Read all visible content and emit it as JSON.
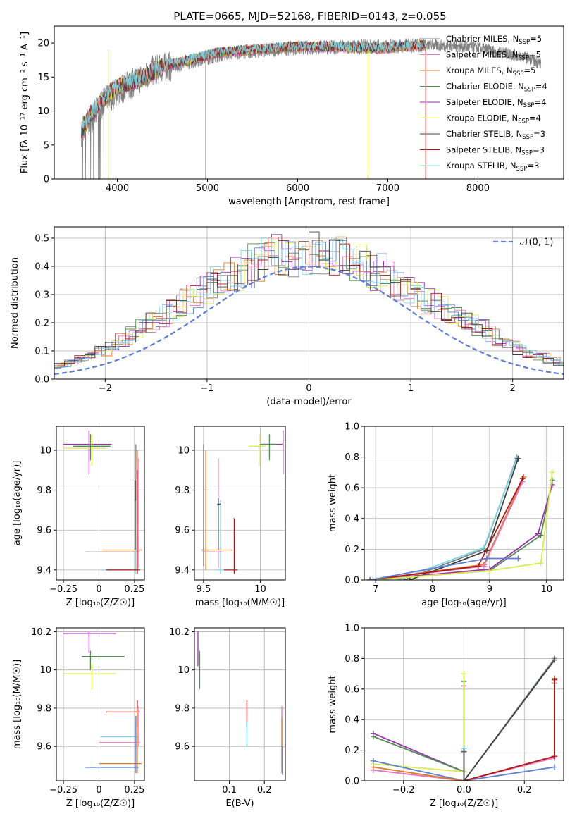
{
  "figure_title": "PLATE=0665, MJD=52168, FIBERID=0143, z=0.055",
  "colors": {
    "Chabrier MILES": "#7f7f7f",
    "Salpeter MILES": "#e377c2",
    "Kroupa MILES": "#e07b20",
    "Chabrier ELODIE": "#4f8f4f",
    "Salpeter ELODIE": "#9b30b0",
    "Kroupa ELODIE": "#d8ec4a",
    "Chabrier STELIB": "#404040",
    "Salpeter STELIB": "#b01818",
    "Kroupa STELIB": "#7ad8e8",
    "normal": "#5b7fd6"
  },
  "chart_data": [
    {
      "type": "line",
      "id": "spectrum",
      "title": "PLATE=0665, MJD=52168, FIBERID=0143, z=0.055",
      "xlabel": "wavelength [Angstrom, rest frame]",
      "ylabel": "Flux [fλ 10⁻¹⁷ erg cm⁻² s⁻¹ A⁻¹]",
      "xlim": [
        3300,
        8950
      ],
      "ylim": [
        0,
        22.5
      ],
      "xticks": [
        4000,
        5000,
        6000,
        7000,
        8000
      ],
      "yticks": [
        0,
        5,
        10,
        15,
        20
      ],
      "grid": false,
      "legend_position": "top-right",
      "legend": [
        {
          "series": "Chabrier MILES",
          "name": "Chabrier MILES",
          "nssp": "5"
        },
        {
          "series": "Salpeter MILES",
          "name": "Salpeter MILES",
          "nssp": "5"
        },
        {
          "series": "Kroupa MILES",
          "name": "Kroupa MILES",
          "nssp": "5"
        },
        {
          "series": "Chabrier ELODIE",
          "name": "Chabrier ELODIE",
          "nssp": "4"
        },
        {
          "series": "Salpeter ELODIE",
          "name": "Salpeter ELODIE",
          "nssp": "4"
        },
        {
          "series": "Kroupa ELODIE",
          "name": "Kroupa ELODIE",
          "nssp": "4"
        },
        {
          "series": "Chabrier STELIB",
          "name": "Chabrier STELIB",
          "nssp": "3"
        },
        {
          "series": "Salpeter STELIB",
          "name": "Salpeter STELIB",
          "nssp": "3"
        },
        {
          "series": "Kroupa STELIB",
          "name": "Kroupa STELIB",
          "nssp": "3"
        }
      ],
      "continuum": {
        "x": [
          3600,
          3700,
          3800,
          3900,
          4000,
          4100,
          4200,
          4300,
          4400,
          4500,
          4700,
          4900,
          5100,
          5300,
          5500,
          5700,
          6000,
          6300,
          6600,
          6900,
          7200,
          7420
        ],
        "y": [
          7,
          9.5,
          11,
          12.5,
          13.5,
          14,
          14.5,
          15,
          15.8,
          16.5,
          17.2,
          17.8,
          18.5,
          18.8,
          19,
          19.2,
          19.5,
          19.5,
          19.3,
          19.2,
          19.5,
          19.8
        ]
      },
      "gray_obs_continuum": {
        "x": [
          3600,
          3900,
          4400,
          5200,
          6000,
          7000,
          7500,
          8000,
          8500,
          8700
        ],
        "y": [
          7,
          12,
          16,
          18.5,
          19.3,
          19.5,
          19.7,
          19.3,
          18,
          17
        ]
      },
      "drops": [
        {
          "series": "Kroupa ELODIE",
          "x": 3900
        },
        {
          "series": "Chabrier MILES",
          "x": 4980
        },
        {
          "series": "Kroupa ELODIE",
          "x": 6780
        },
        {
          "series": "Salpeter STELIB",
          "x": 7420
        }
      ]
    },
    {
      "type": "step",
      "id": "residuals",
      "xlabel": "(data-model)/error",
      "ylabel": "Normed distribution",
      "xlim": [
        -2.5,
        2.5
      ],
      "ylim": [
        0,
        0.54
      ],
      "xticks": [
        -2,
        -1,
        0,
        1,
        2
      ],
      "yticks": [
        0,
        0.1,
        0.2,
        0.3,
        0.4,
        0.5
      ],
      "grid": true,
      "legend_position": "top-right",
      "legend": [
        {
          "name": "𝒩(0, 1)",
          "style": "dashed",
          "color": "#5b7fd6"
        }
      ],
      "bin_edges_step": 0.1,
      "histogram_envelope": [
        0.018,
        0.022,
        0.028,
        0.035,
        0.042,
        0.05,
        0.06,
        0.072,
        0.085,
        0.1,
        0.118,
        0.138,
        0.16,
        0.18,
        0.2,
        0.225,
        0.25,
        0.275,
        0.3,
        0.32,
        0.34,
        0.36,
        0.375,
        0.39,
        0.41,
        0.43,
        0.45,
        0.44,
        0.43,
        0.44,
        0.45,
        0.44,
        0.43,
        0.42,
        0.41,
        0.395,
        0.38,
        0.36,
        0.34,
        0.32,
        0.3,
        0.28,
        0.26,
        0.24,
        0.22,
        0.2,
        0.18,
        0.16,
        0.14,
        0.12,
        0.105,
        0.09,
        0.078,
        0.066,
        0.056,
        0.046,
        0.038,
        0.03,
        0.024,
        0.02
      ]
    },
    {
      "type": "scatter",
      "id": "age-vs-Z",
      "xlabel": "Z [log₁₀(Z/Z☉)]",
      "ylabel": "age  [log₁₀(age/yr)]",
      "xlim": [
        -0.3,
        0.32
      ],
      "ylim": [
        9.35,
        10.12
      ],
      "xticks": [
        -0.25,
        0.0,
        0.25
      ],
      "yticks": [
        9.4,
        9.6,
        9.8,
        10.0
      ],
      "grid": true,
      "points": [
        {
          "series": "Salpeter ELODIE",
          "x": -0.07,
          "y": 10.03,
          "xlo": -0.25,
          "xhi": 0.09,
          "ylo": 9.88,
          "yhi": 10.1
        },
        {
          "series": "Kroupa ELODIE",
          "x": -0.05,
          "y": 10.01,
          "xlo": -0.25,
          "xhi": 0.05,
          "ylo": 9.92,
          "yhi": 10.08
        },
        {
          "series": "Chabrier ELODIE",
          "x": -0.06,
          "y": 10.02,
          "xlo": -0.18,
          "xhi": 0.08,
          "ylo": 9.95,
          "yhi": 10.08
        },
        {
          "series": "Kroupa MILES",
          "x": 0.27,
          "y": 9.5,
          "xlo": 0.02,
          "xhi": 0.3,
          "ylo": 9.4,
          "yhi": 10.0
        },
        {
          "series": "Salpeter MILES",
          "x": 0.28,
          "y": 9.49,
          "xlo": 0.03,
          "xhi": 0.29,
          "ylo": 9.41,
          "yhi": 9.96
        },
        {
          "series": "Chabrier MILES",
          "x": 0.26,
          "y": 9.49,
          "xlo": -0.1,
          "xhi": 0.28,
          "ylo": 9.4,
          "yhi": 10.03
        },
        {
          "series": "Kroupa STELIB",
          "x": 0.26,
          "y": 9.4,
          "xlo": 0.02,
          "xhi": 0.28,
          "ylo": 9.38,
          "yhi": 9.75
        },
        {
          "series": "Salpeter STELIB",
          "x": 0.27,
          "y": 9.4,
          "xlo": 0.05,
          "xhi": 0.29,
          "ylo": 9.38,
          "yhi": 9.9
        },
        {
          "series": "Chabrier STELIB",
          "x": 0.255,
          "y": 9.75,
          "xlo": 0.25,
          "xhi": 0.26,
          "ylo": 9.5,
          "yhi": 9.85
        }
      ]
    },
    {
      "type": "scatter",
      "id": "age-vs-mass",
      "xlabel": "mass [log₁₀(M/M☉)]",
      "ylabel": "",
      "xlim": [
        9.42,
        10.22
      ],
      "ylim": [
        9.35,
        10.12
      ],
      "xticks": [
        9.5,
        10.0
      ],
      "yticks": [
        9.4,
        9.6,
        9.8,
        10.0
      ],
      "grid": true,
      "points": [
        {
          "series": "Salpeter ELODIE",
          "x": 10.2,
          "y": 10.03,
          "xlo": 10.02,
          "xhi": 10.2,
          "ylo": 9.88,
          "yhi": 10.1
        },
        {
          "series": "Kroupa ELODIE",
          "x": 9.99,
          "y": 10.02,
          "xlo": 9.9,
          "xhi": 10.05,
          "ylo": 9.92,
          "yhi": 10.08
        },
        {
          "series": "Chabrier ELODIE",
          "x": 10.08,
          "y": 10.03,
          "xlo": 10.0,
          "xhi": 10.15,
          "ylo": 9.95,
          "yhi": 10.08
        },
        {
          "series": "Kroupa MILES",
          "x": 9.52,
          "y": 9.5,
          "xlo": 9.48,
          "xhi": 9.75,
          "ylo": 9.4,
          "yhi": 10.0
        },
        {
          "series": "Salpeter MILES",
          "x": 9.63,
          "y": 9.49,
          "xlo": 9.5,
          "xhi": 9.68,
          "ylo": 9.41,
          "yhi": 9.96
        },
        {
          "series": "Chabrier MILES",
          "x": 9.5,
          "y": 9.49,
          "xlo": 9.48,
          "xhi": 9.6,
          "ylo": 9.42,
          "yhi": 10.03
        },
        {
          "series": "Kroupa STELIB",
          "x": 9.65,
          "y": 9.4,
          "xlo": 9.6,
          "xhi": 9.7,
          "ylo": 9.38,
          "yhi": 9.75
        },
        {
          "series": "Salpeter STELIB",
          "x": 9.77,
          "y": 9.4,
          "xlo": 9.68,
          "xhi": 9.8,
          "ylo": 9.38,
          "yhi": 9.66
        },
        {
          "series": "Chabrier STELIB",
          "x": 9.63,
          "y": 9.73,
          "xlo": 9.62,
          "xhi": 9.65,
          "ylo": 9.5,
          "yhi": 9.76
        }
      ]
    },
    {
      "type": "line",
      "id": "weight-vs-age",
      "xlabel": "age  [log₁₀(age/yr)]",
      "ylabel": "mass weight",
      "xlim": [
        6.8,
        10.3
      ],
      "ylim": [
        0,
        1.0
      ],
      "xticks": [
        7,
        8,
        9,
        10
      ],
      "yticks": [
        0,
        0.2,
        0.4,
        0.6,
        0.8,
        1.0
      ],
      "grid": true,
      "series": [
        {
          "name": "Chabrier MILES",
          "x": [
            7.5,
            8.9,
            9.48
          ],
          "y": [
            0.0,
            0.2,
            0.8
          ]
        },
        {
          "name": "Kroupa STELIB",
          "x": [
            7.4,
            8.9,
            9.48
          ],
          "y": [
            0.0,
            0.21,
            0.79
          ]
        },
        {
          "name": "Chabrier STELIB",
          "x": [
            7.6,
            8.95,
            9.5
          ],
          "y": [
            0.0,
            0.19,
            0.79
          ]
        },
        {
          "name": "Kroupa MILES",
          "x": [
            6.9,
            8.9,
            9.6
          ],
          "y": [
            0.0,
            0.1,
            0.67
          ]
        },
        {
          "name": "Salpeter MILES",
          "x": [
            6.9,
            8.9,
            9.58
          ],
          "y": [
            0.0,
            0.09,
            0.64
          ]
        },
        {
          "name": "Salpeter STELIB",
          "x": [
            6.9,
            8.8,
            9.58
          ],
          "y": [
            0.0,
            0.09,
            0.66
          ]
        },
        {
          "name": "Chabrier ELODIE",
          "x": [
            6.95,
            9.0,
            9.9,
            10.1
          ],
          "y": [
            0.0,
            0.06,
            0.29,
            0.65
          ]
        },
        {
          "name": "Salpeter ELODIE",
          "x": [
            6.95,
            9.0,
            9.85,
            10.1
          ],
          "y": [
            0.0,
            0.07,
            0.3,
            0.62
          ]
        },
        {
          "name": "Kroupa ELODIE",
          "x": [
            6.95,
            9.0,
            9.9,
            10.1
          ],
          "y": [
            0.0,
            0.06,
            0.11,
            0.7
          ]
        },
        {
          "name": "normal",
          "x": [
            6.9,
            8.95,
            9.5
          ],
          "y": [
            0.0,
            0.14,
            0.14
          ]
        }
      ]
    },
    {
      "type": "scatter",
      "id": "mass-vs-Z",
      "xlabel": "Z [log₁₀(Z/Z☉)]",
      "ylabel": "mass [log₁₀(M/M☉)]",
      "xlim": [
        -0.3,
        0.32
      ],
      "ylim": [
        9.42,
        10.22
      ],
      "xticks": [
        -0.25,
        0.0,
        0.25
      ],
      "yticks": [
        9.6,
        9.8,
        10.0,
        10.2
      ],
      "grid": true,
      "points": [
        {
          "series": "Salpeter ELODIE",
          "x": -0.07,
          "y": 10.19,
          "xlo": -0.25,
          "xhi": 0.12,
          "ylo": 10.09,
          "yhi": 10.2
        },
        {
          "series": "Chabrier ELODIE",
          "x": -0.06,
          "y": 10.07,
          "xlo": -0.12,
          "xhi": 0.18,
          "ylo": 10.0,
          "yhi": 10.1
        },
        {
          "series": "Kroupa ELODIE",
          "x": -0.05,
          "y": 9.98,
          "xlo": -0.25,
          "xhi": 0.12,
          "ylo": 9.9,
          "yhi": 10.03
        },
        {
          "series": "Salpeter STELIB",
          "x": 0.27,
          "y": 9.78,
          "xlo": 0.05,
          "xhi": 0.29,
          "ylo": 9.7,
          "yhi": 9.84
        },
        {
          "series": "Salpeter MILES",
          "x": 0.28,
          "y": 9.62,
          "xlo": 0.0,
          "xhi": 0.29,
          "ylo": 9.6,
          "yhi": 9.81
        },
        {
          "series": "Kroupa STELIB",
          "x": 0.26,
          "y": 9.65,
          "xlo": 0.01,
          "xhi": 0.28,
          "ylo": 9.6,
          "yhi": 9.75
        },
        {
          "series": "Kroupa MILES",
          "x": 0.27,
          "y": 9.51,
          "xlo": 0.0,
          "xhi": 0.3,
          "ylo": 9.46,
          "yhi": 9.8
        },
        {
          "series": "normal",
          "x": 0.26,
          "y": 9.49,
          "xlo": -0.1,
          "xhi": 0.28,
          "ylo": 9.46,
          "yhi": 9.76
        }
      ]
    },
    {
      "type": "scatter",
      "id": "mass-vs-ebv",
      "xlabel": "E(B-V)",
      "ylabel": "",
      "xlim": [
        0.0,
        0.26
      ],
      "ylim": [
        9.42,
        10.22
      ],
      "xticks": [
        0.1,
        0.2
      ],
      "yticks": [
        9.6,
        9.8,
        10.0,
        10.2
      ],
      "grid": true,
      "points": [
        {
          "series": "Salpeter ELODIE",
          "x": 0.01,
          "y": 10.19,
          "ylo": 10.02,
          "yhi": 10.2
        },
        {
          "series": "Chabrier ELODIE",
          "x": 0.015,
          "y": 10.07,
          "ylo": 9.9,
          "yhi": 10.1
        },
        {
          "series": "Salpeter STELIB",
          "x": 0.15,
          "y": 9.78,
          "ylo": 9.7,
          "yhi": 9.84
        },
        {
          "series": "Kroupa STELIB",
          "x": 0.15,
          "y": 9.65,
          "ylo": 9.6,
          "yhi": 9.73
        },
        {
          "series": "Salpeter MILES",
          "x": 0.25,
          "y": 9.62,
          "ylo": 9.48,
          "yhi": 9.81
        },
        {
          "series": "Kroupa MILES",
          "x": 0.25,
          "y": 9.51,
          "ylo": 9.46,
          "yhi": 9.75
        },
        {
          "series": "normal",
          "x": 0.252,
          "y": 9.49,
          "ylo": 9.45,
          "yhi": 9.6
        }
      ]
    },
    {
      "type": "line",
      "id": "weight-vs-Z",
      "xlabel": "Z [log₁₀(Z/Z☉)]",
      "ylabel": "mass weight",
      "xlim": [
        -0.33,
        0.33
      ],
      "ylim": [
        0,
        1.0
      ],
      "xticks": [
        -0.2,
        0.0,
        0.2
      ],
      "yticks": [
        0,
        0.2,
        0.4,
        0.6,
        0.8,
        1.0
      ],
      "grid": true,
      "series": [
        {
          "name": "Salpeter ELODIE",
          "x": [
            -0.3,
            0.0,
            0.0
          ],
          "y": [
            0.31,
            0.06,
            0.62
          ]
        },
        {
          "name": "Chabrier ELODIE",
          "x": [
            -0.3,
            0.0,
            0.0
          ],
          "y": [
            0.29,
            0.06,
            0.65
          ]
        },
        {
          "name": "Kroupa ELODIE",
          "x": [
            -0.3,
            0.0,
            0.0
          ],
          "y": [
            0.11,
            0.06,
            0.7
          ]
        },
        {
          "name": "normal",
          "x": [
            -0.3,
            0.0,
            0.3
          ],
          "y": [
            0.13,
            0.0,
            0.09
          ]
        },
        {
          "name": "Salpeter MILES",
          "x": [
            -0.3,
            0.0,
            0.3,
            0.3
          ],
          "y": [
            0.07,
            0.0,
            0.15,
            0.64
          ]
        },
        {
          "name": "Kroupa MILES",
          "x": [
            -0.3,
            0.0,
            0.3,
            0.3
          ],
          "y": [
            0.09,
            0.0,
            0.16,
            0.67
          ]
        },
        {
          "name": "Salpeter STELIB",
          "x": [
            0.0,
            0.3,
            0.3
          ],
          "y": [
            0.0,
            0.16,
            0.66
          ]
        },
        {
          "name": "Chabrier MILES",
          "x": [
            0.0,
            0.0,
            0.3
          ],
          "y": [
            0.2,
            0.0,
            0.8
          ]
        },
        {
          "name": "Kroupa STELIB",
          "x": [
            0.0,
            0.0,
            0.3
          ],
          "y": [
            0.21,
            0.0,
            0.79
          ]
        },
        {
          "name": "Chabrier STELIB",
          "x": [
            0.0,
            0.0,
            0.3
          ],
          "y": [
            0.19,
            0.0,
            0.79
          ]
        }
      ]
    }
  ]
}
